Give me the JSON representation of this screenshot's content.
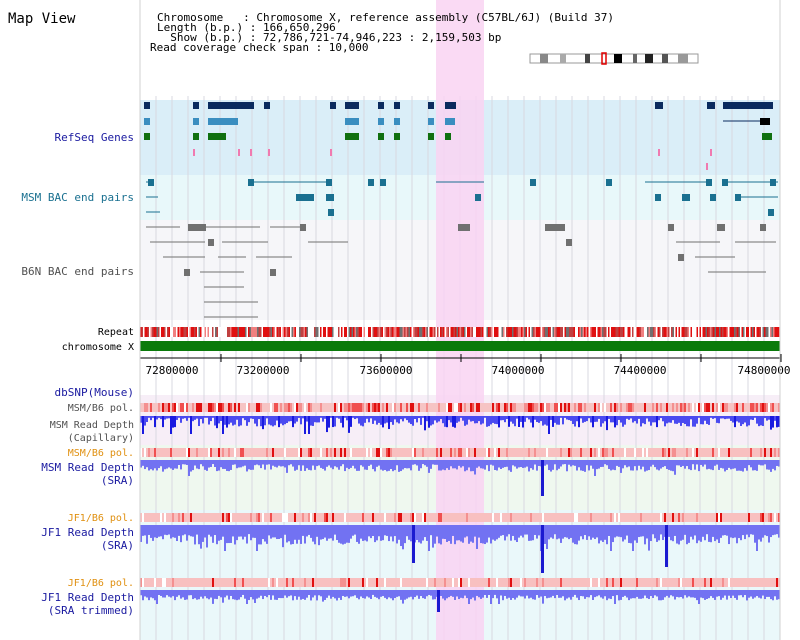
{
  "header": {
    "view_title": "Map View",
    "info_lines": [
      "Chromosome   : Chromosome X, reference assembly (C57BL/6J) (Build 37)",
      "Length (b.p.) : 166,650,296",
      "  Show (b.p.) : 72,786,721-74,946,223 : 2,159,503 bp",
      "Read coverage check span : 10,000"
    ]
  },
  "tracks": {
    "refseq": "RefSeq Genes",
    "msm_bac": "MSM BAC end pairs",
    "b6n_bac": "B6N BAC end pairs",
    "repeat": "Repeat",
    "chromosome": "chromosome X",
    "dbsnp": "dbSNP(Mouse)",
    "msm_b6_pol_1": "MSM/B6 pol.",
    "msm_depth_cap_1": "MSM Read Depth",
    "msm_depth_cap_2": "(Capillary)",
    "msm_b6_pol_2": "MSM/B6 pol.",
    "msm_depth_sra_1": "MSM Read Depth",
    "msm_depth_sra_2": "(SRA)",
    "jf1_b6_pol_1": "JF1/B6 pol.",
    "jf1_depth_sra_1": "JF1 Read Depth",
    "jf1_depth_sra_2": "(SRA)",
    "jf1_b6_pol_2": "JF1/B6 pol.",
    "jf1_depth_trim_1": "JF1 Read Depth",
    "jf1_depth_trim_2": "(SRA trimmed)"
  },
  "axis": {
    "ticks": [
      "72800000",
      "73200000",
      "73600000",
      "74000000",
      "74400000",
      "74800000"
    ]
  },
  "colors": {
    "refseq_band": "#daeef8",
    "msm_band": "#e8f8fa",
    "b6n_band": "#f4f4f8",
    "highlight": "#f9d8f3",
    "gene_navy": "#0a2a5e",
    "gene_blue": "#3a8ec0",
    "gene_green": "#107010",
    "msm_bac": "#1a7090",
    "b6n_bac": "#707070",
    "chromosome": "#0a7a0a",
    "pol": "#f4b0b0",
    "depth": "#6a6af0",
    "depth_dark": "#2020d0",
    "label_blue": "#1a1aa0",
    "label_orange": "#e09010",
    "label_teal": "#1a7090",
    "label_gray": "#505050"
  }
}
